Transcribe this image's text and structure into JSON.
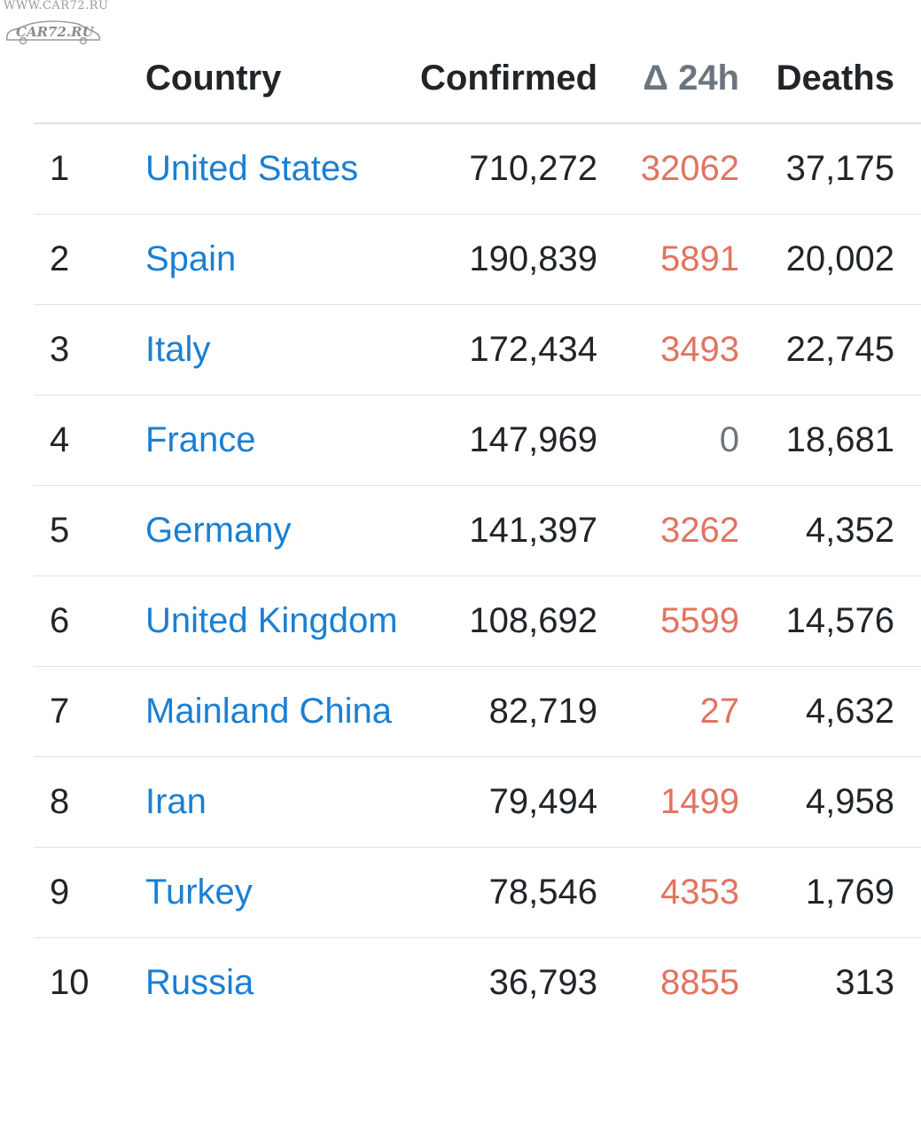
{
  "watermark": {
    "url": "WWW.CAR72.RU",
    "logo": "CAR72.RU"
  },
  "colors": {
    "link": "#1a7fd4",
    "delta_positive": "#e2735f",
    "delta_zero": "#6c757d",
    "text": "#212529",
    "divider": "#dee2e6"
  },
  "table": {
    "headers": {
      "rank": "",
      "country": "Country",
      "confirmed": "Confirmed",
      "delta": "Δ 24h",
      "deaths": "Deaths"
    },
    "rows": [
      {
        "rank": "1",
        "country": "United States",
        "confirmed": "710,272",
        "delta": "32062",
        "deaths": "37,175"
      },
      {
        "rank": "2",
        "country": "Spain",
        "confirmed": "190,839",
        "delta": "5891",
        "deaths": "20,002"
      },
      {
        "rank": "3",
        "country": "Italy",
        "confirmed": "172,434",
        "delta": "3493",
        "deaths": "22,745"
      },
      {
        "rank": "4",
        "country": "France",
        "confirmed": "147,969",
        "delta": "0",
        "deaths": "18,681"
      },
      {
        "rank": "5",
        "country": "Germany",
        "confirmed": "141,397",
        "delta": "3262",
        "deaths": "4,352"
      },
      {
        "rank": "6",
        "country": "United Kingdom",
        "confirmed": "108,692",
        "delta": "5599",
        "deaths": "14,576"
      },
      {
        "rank": "7",
        "country": "Mainland China",
        "confirmed": "82,719",
        "delta": "27",
        "deaths": "4,632"
      },
      {
        "rank": "8",
        "country": "Iran",
        "confirmed": "79,494",
        "delta": "1499",
        "deaths": "4,958"
      },
      {
        "rank": "9",
        "country": "Turkey",
        "confirmed": "78,546",
        "delta": "4353",
        "deaths": "1,769"
      },
      {
        "rank": "10",
        "country": "Russia",
        "confirmed": "36,793",
        "delta": "8855",
        "deaths": "313"
      }
    ]
  }
}
